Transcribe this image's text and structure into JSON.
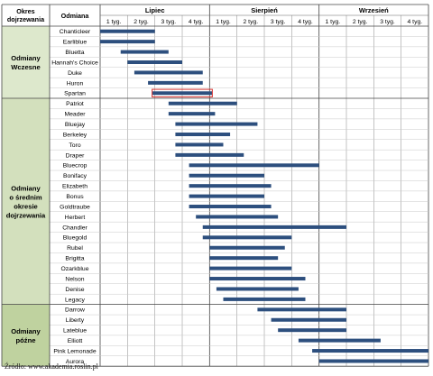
{
  "chart_data": {
    "type": "gantt",
    "headers": {
      "group": "Okres dojrzewania",
      "variety": "Odmiana"
    },
    "months": [
      "Lipiec",
      "Sierpień",
      "Wrzesień"
    ],
    "weeks": [
      "1 tyg.",
      "2 tyg.",
      "3 tyg.",
      "4 tyg."
    ],
    "x_unit": "weeks from start of July",
    "xlim": [
      0,
      12
    ],
    "groups": [
      {
        "label": [
          "Odmiany",
          "Wczesne"
        ],
        "color": "#dde8cc",
        "rows": [
          {
            "name": "Chanticleer",
            "start": 0.0,
            "end": 2.0
          },
          {
            "name": "Earliblue",
            "start": 0.0,
            "end": 2.0
          },
          {
            "name": "Bluetta",
            "start": 0.75,
            "end": 2.5
          },
          {
            "name": "Hannah's Choice",
            "start": 1.0,
            "end": 3.0
          },
          {
            "name": "Duke",
            "start": 1.25,
            "end": 3.75
          },
          {
            "name": "Huron",
            "start": 1.75,
            "end": 3.75
          },
          {
            "name": "Spartan",
            "start": 1.9,
            "end": 4.1,
            "highlight": true
          }
        ]
      },
      {
        "label": [
          "Odmiany",
          "o średnim",
          "okresie",
          "dojrzewania"
        ],
        "color": "#d3e0bd",
        "rows": [
          {
            "name": "Patriot",
            "start": 2.5,
            "end": 5.0
          },
          {
            "name": "Meader",
            "start": 2.5,
            "end": 4.2
          },
          {
            "name": "Bluejay",
            "start": 2.75,
            "end": 5.75
          },
          {
            "name": "Berkeley",
            "start": 2.75,
            "end": 4.75
          },
          {
            "name": "Toro",
            "start": 2.75,
            "end": 4.5
          },
          {
            "name": "Draper",
            "start": 2.75,
            "end": 5.25
          },
          {
            "name": "Bluecrop",
            "start": 3.25,
            "end": 8.0
          },
          {
            "name": "Bonifacy",
            "start": 3.25,
            "end": 6.0
          },
          {
            "name": "Elizabeth",
            "start": 3.25,
            "end": 6.25
          },
          {
            "name": "Bonus",
            "start": 3.25,
            "end": 6.0
          },
          {
            "name": "Goldtraube",
            "start": 3.25,
            "end": 6.25
          },
          {
            "name": "Herbert",
            "start": 3.5,
            "end": 6.5
          },
          {
            "name": "Chandler",
            "start": 3.75,
            "end": 9.0
          },
          {
            "name": "Bluegold",
            "start": 3.75,
            "end": 7.0
          },
          {
            "name": "Rubel",
            "start": 4.0,
            "end": 6.75
          },
          {
            "name": "Brigitta",
            "start": 4.0,
            "end": 6.5
          },
          {
            "name": "Ozarkblue",
            "start": 4.0,
            "end": 7.0
          },
          {
            "name": "Nelson",
            "start": 4.0,
            "end": 7.5
          },
          {
            "name": "Denise",
            "start": 4.25,
            "end": 7.25
          },
          {
            "name": "Legacy",
            "start": 4.5,
            "end": 7.5
          }
        ]
      },
      {
        "label": [
          "Odmiany",
          "późne"
        ],
        "color": "#bfd29f",
        "rows": [
          {
            "name": "Darrow",
            "start": 5.75,
            "end": 9.0
          },
          {
            "name": "Liberty",
            "start": 6.25,
            "end": 9.0
          },
          {
            "name": "Lateblue",
            "start": 6.5,
            "end": 9.0
          },
          {
            "name": "Elliott",
            "start": 7.25,
            "end": 10.25
          },
          {
            "name": "Pink Lemonade",
            "start": 7.75,
            "end": 12.0
          },
          {
            "name": "Aurora",
            "start": 8.0,
            "end": 12.0
          }
        ]
      }
    ],
    "bar_color": "#2d4f7e",
    "highlight_color": "#d6312e",
    "grid": true,
    "source": "Źródło: www.akademia.roslin.pl"
  }
}
